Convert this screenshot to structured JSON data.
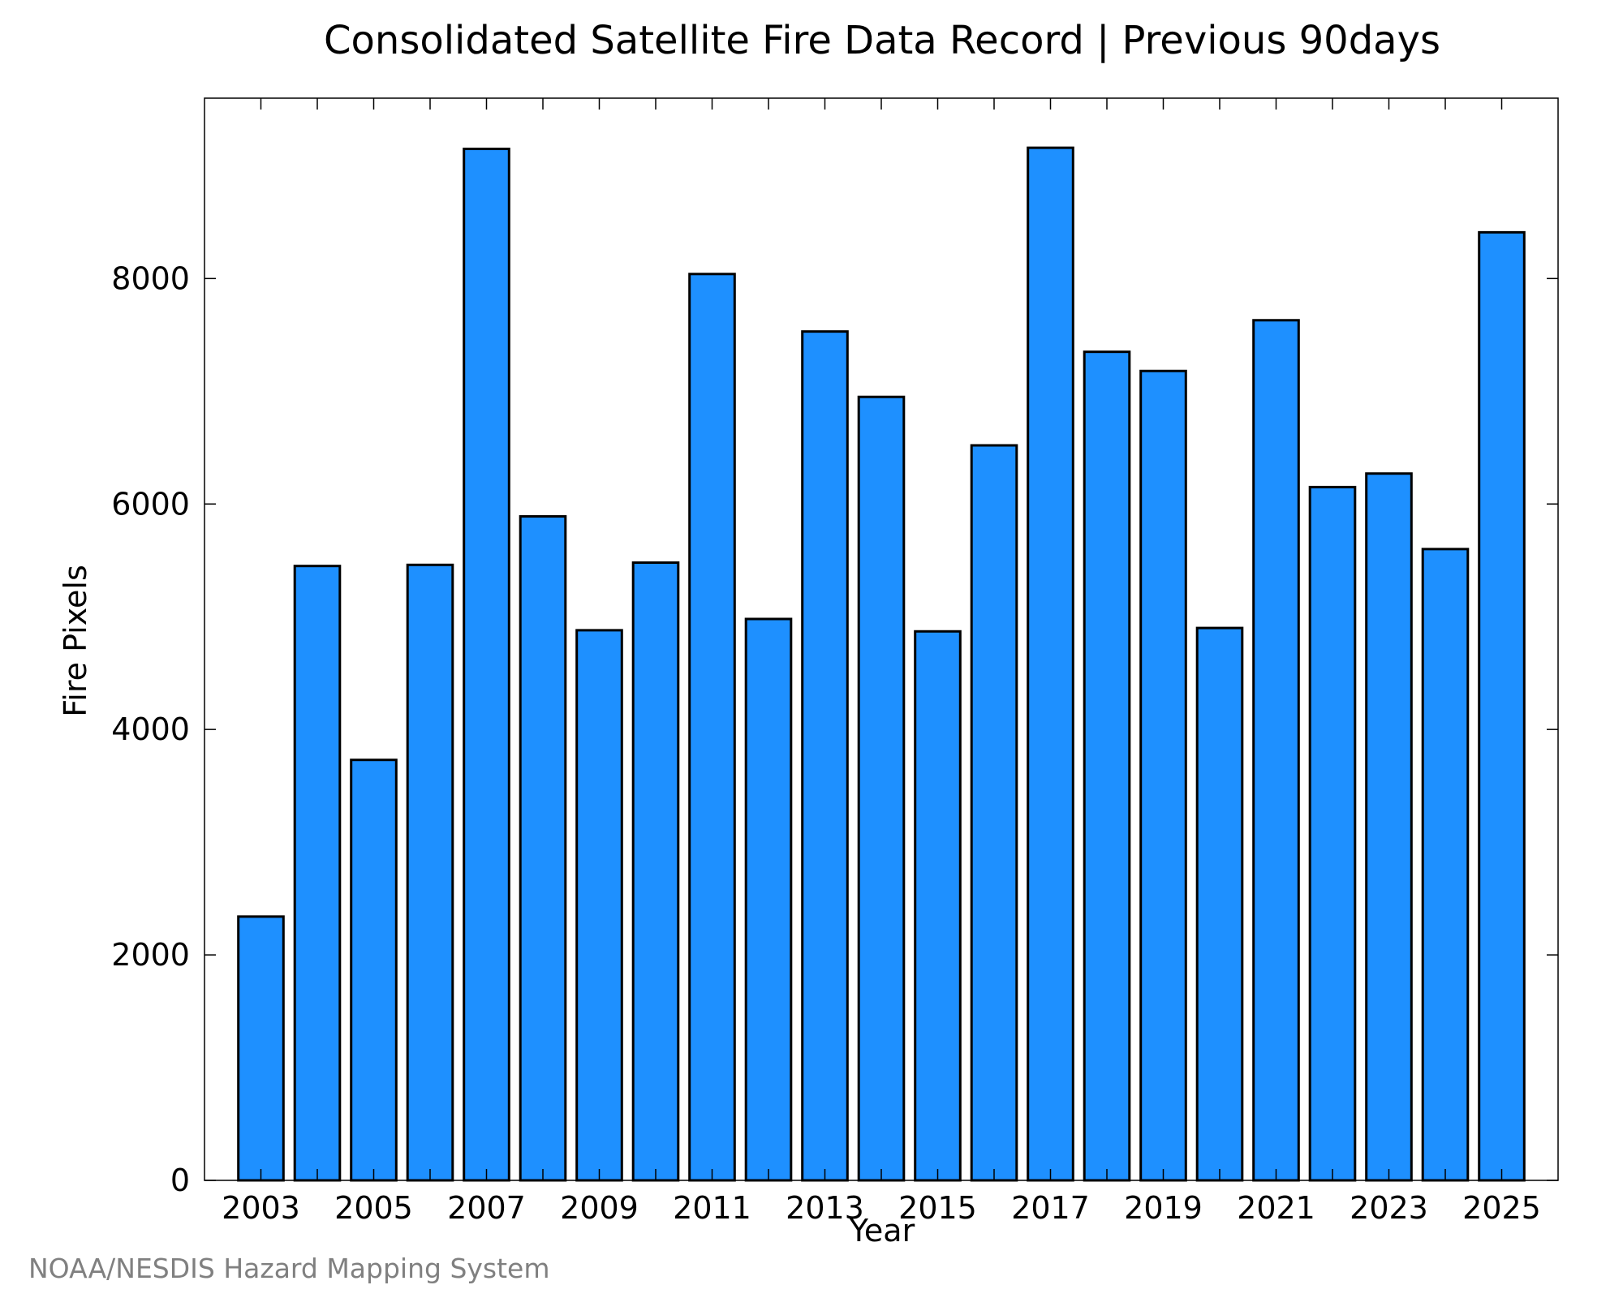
{
  "credit": "NOAA/NESDIS Hazard Mapping System",
  "colors": {
    "bar_fill": "#1e90ff",
    "bar_stroke": "#000000",
    "credit": "#808080"
  },
  "chart_data": {
    "type": "bar",
    "title": "Consolidated Satellite Fire Data Record | Previous 90days",
    "xlabel": "Year",
    "ylabel": "Fire Pixels",
    "categories": [
      "2003",
      "2004",
      "2005",
      "2006",
      "2007",
      "2008",
      "2009",
      "2010",
      "2011",
      "2012",
      "2013",
      "2014",
      "2015",
      "2016",
      "2017",
      "2018",
      "2019",
      "2020",
      "2021",
      "2022",
      "2023",
      "2024",
      "2025"
    ],
    "values": [
      2340,
      5450,
      3730,
      5460,
      9150,
      5890,
      4880,
      5480,
      8040,
      4980,
      7530,
      6950,
      4870,
      6520,
      9160,
      7350,
      7180,
      4900,
      7630,
      6150,
      6270,
      5600,
      8410
    ],
    "xlim": [
      2002,
      2026
    ],
    "ylim": [
      0,
      9600
    ],
    "x_ticks": [
      "2003",
      "2005",
      "2007",
      "2009",
      "2011",
      "2013",
      "2015",
      "2017",
      "2019",
      "2021",
      "2023",
      "2025"
    ],
    "y_ticks": [
      "0",
      "2000",
      "4000",
      "6000",
      "8000"
    ],
    "grid": false,
    "legend": "none"
  }
}
